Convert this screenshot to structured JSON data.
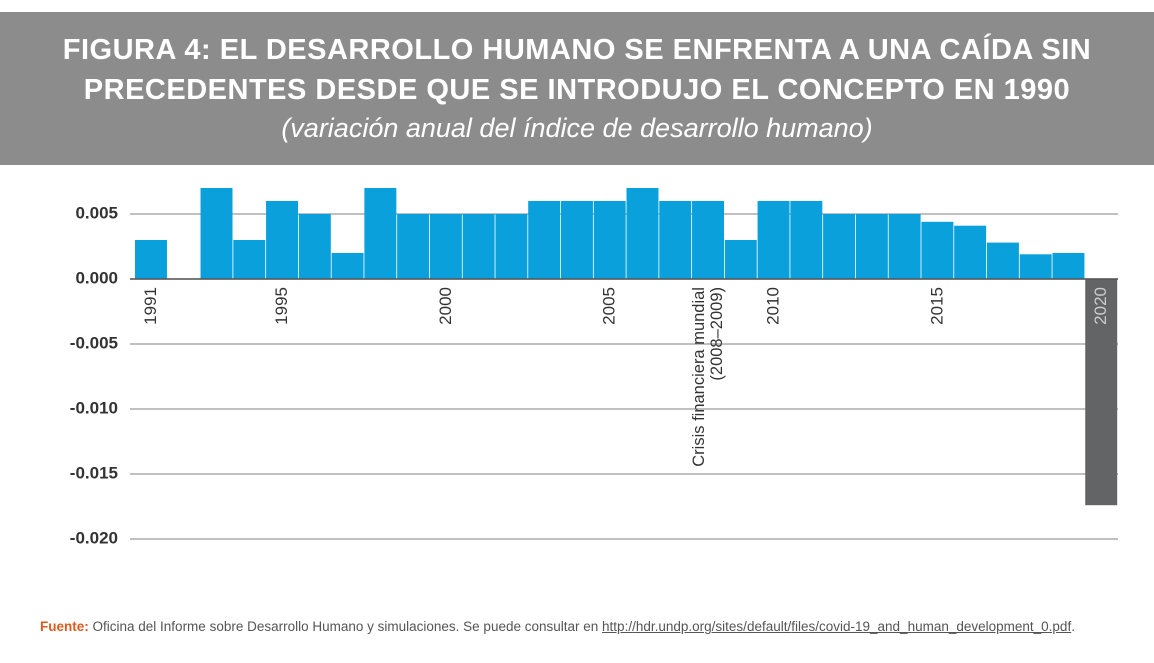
{
  "chart_data": {
    "type": "bar",
    "title_lines": [
      "FIGURA 4: EL DESARROLLO HUMANO SE ENFRENTA A UNA CAÍDA SIN",
      "PRECEDENTES DESDE QUE SE INTRODUJO EL CONCEPTO EN 1990"
    ],
    "subtitle": "(variación anual del índice de desarrollo humano)",
    "categories": [
      "1991",
      null,
      null,
      null,
      "1995",
      null,
      null,
      null,
      null,
      "2000",
      null,
      null,
      null,
      null,
      "2005",
      null,
      null,
      null,
      null,
      "2010",
      null,
      null,
      null,
      null,
      "2015",
      null,
      null,
      null,
      null,
      "2020"
    ],
    "values": [
      0.003,
      0,
      0.007,
      0.003,
      0.006,
      0.005,
      0.002,
      0.007,
      0.005,
      0.005,
      0.005,
      0.005,
      0.006,
      0.006,
      0.006,
      0.007,
      0.006,
      0.006,
      0.003,
      0.006,
      0.006,
      0.005,
      0.005,
      0.005,
      0.0044,
      0.0041,
      0.0028,
      0.0019,
      0.002,
      -0.0174
    ],
    "colors": [
      "#0aa0dc",
      "#0aa0dc",
      "#0aa0dc",
      "#0aa0dc",
      "#0aa0dc",
      "#0aa0dc",
      "#0aa0dc",
      "#0aa0dc",
      "#0aa0dc",
      "#0aa0dc",
      "#0aa0dc",
      "#0aa0dc",
      "#0aa0dc",
      "#0aa0dc",
      "#0aa0dc",
      "#0aa0dc",
      "#0aa0dc",
      "#0aa0dc",
      "#0aa0dc",
      "#0aa0dc",
      "#0aa0dc",
      "#0aa0dc",
      "#0aa0dc",
      "#0aa0dc",
      "#0aa0dc",
      "#0aa0dc",
      "#0aa0dc",
      "#0aa0dc",
      "#0aa0dc",
      "#636466"
    ],
    "ylim": [
      -0.0215,
      0.0075
    ],
    "yticks": [
      0.005,
      {
        "value": 0,
        "label": "0.000"
      },
      -0.005,
      {
        "value": -0.01,
        "label": "-0.010"
      },
      -0.015,
      {
        "value": -0.02,
        "label": "-0.020"
      }
    ],
    "grid": true,
    "annotation": {
      "index": 17,
      "lines": [
        "Crisis financiera mundial",
        "(2008–2009)"
      ]
    },
    "source": {
      "label": "Fuente:",
      "text": "Oficina del Informe sobre Desarrollo Humano y simulaciones. Se puede consultar en",
      "url": "http://hdr.undp.org/sites/default/files/covid-19_and_human_development_0.pdf",
      "end": "."
    }
  }
}
